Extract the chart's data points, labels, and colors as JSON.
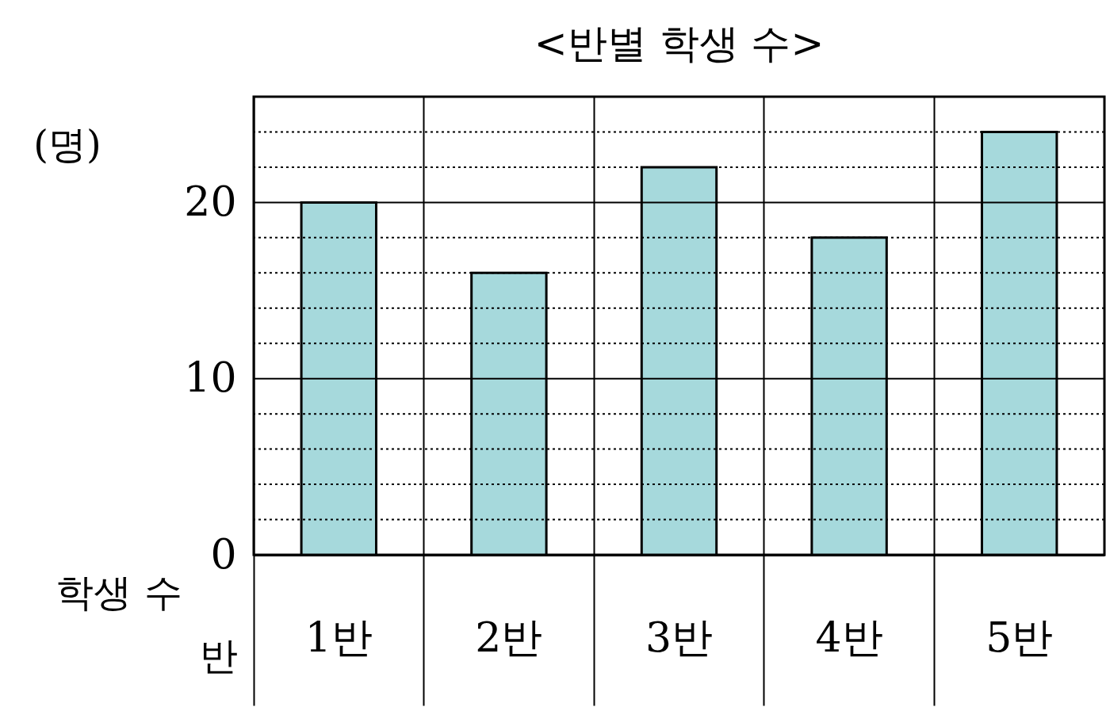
{
  "chart_data": {
    "type": "bar",
    "title": "<반별 학생 수>",
    "xlabel": "반",
    "ylabel": "학생 수",
    "annotations": [
      "(명)"
    ],
    "categories": [
      "1반",
      "2반",
      "3반",
      "4반",
      "5반"
    ],
    "values": [
      20,
      16,
      22,
      18,
      24
    ],
    "color": "#a6d9dc",
    "ylim": [
      0,
      26
    ],
    "yticks": [
      0,
      {
        "value": 2,
        "label": null
      },
      {
        "value": 4,
        "label": null
      },
      {
        "value": 6,
        "label": null
      },
      {
        "value": 8,
        "label": null
      },
      10,
      {
        "value": 12,
        "label": null
      },
      {
        "value": 14,
        "label": null
      },
      {
        "value": 16,
        "label": null
      },
      {
        "value": 18,
        "label": null
      },
      20,
      {
        "value": 22,
        "label": null
      },
      {
        "value": 24,
        "label": null
      }
    ],
    "grid": true
  }
}
